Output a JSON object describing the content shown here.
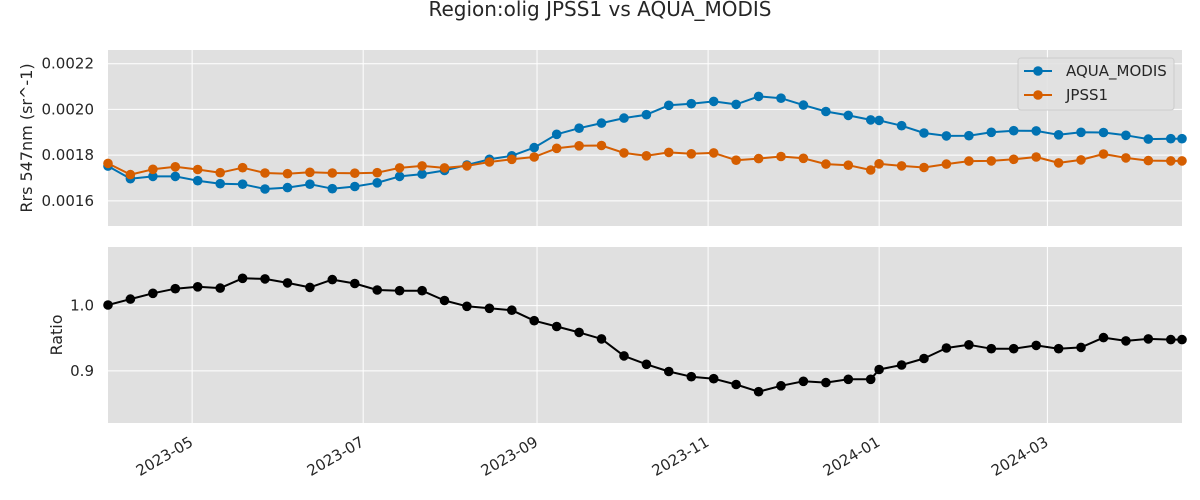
{
  "title": "Region:olig JPSS1 vs AQUA_MODIS",
  "colors": {
    "panel_background": "#e0e0e0",
    "grid": "#ffffff",
    "aqua_modis": "#0072b2",
    "jpss1": "#d55e00",
    "ratio": "#000000"
  },
  "chart_data": [
    {
      "type": "line",
      "ylabel": "Rrs 547nm (sr^-1)",
      "ylim": [
        0.00149,
        0.00226
      ],
      "yticks": [
        "0.0016",
        "0.0018",
        "0.0020",
        "0.0022"
      ],
      "xlim": [
        "2023-04-01",
        "2024-04-18"
      ],
      "grid": true,
      "legend_position": "top-right",
      "x": [
        "2023-04-01",
        "2023-04-09",
        "2023-04-17",
        "2023-04-25",
        "2023-05-03",
        "2023-05-11",
        "2023-05-19",
        "2023-05-27",
        "2023-06-04",
        "2023-06-12",
        "2023-06-20",
        "2023-06-28",
        "2023-07-06",
        "2023-07-14",
        "2023-07-22",
        "2023-07-30",
        "2023-08-07",
        "2023-08-15",
        "2023-08-23",
        "2023-08-31",
        "2023-09-08",
        "2023-09-16",
        "2023-09-24",
        "2023-10-02",
        "2023-10-10",
        "2023-10-18",
        "2023-10-26",
        "2023-11-03",
        "2023-11-11",
        "2023-11-19",
        "2023-11-27",
        "2023-12-05",
        "2023-12-13",
        "2023-12-21",
        "2023-12-29",
        "2024-01-01",
        "2024-01-09",
        "2024-01-17",
        "2024-01-25",
        "2024-02-02",
        "2024-02-10",
        "2024-02-18",
        "2024-02-26",
        "2024-03-05",
        "2024-03-13",
        "2024-03-21",
        "2024-03-29",
        "2024-04-06",
        "2024-04-14",
        "2024-04-18"
      ],
      "series": [
        {
          "name": "AQUA_MODIS",
          "color": "#0072b2",
          "values": [
            0.001752,
            0.001697,
            0.001707,
            0.001707,
            0.001688,
            0.001675,
            0.001673,
            0.001652,
            0.001658,
            0.001673,
            0.001653,
            0.001663,
            0.001679,
            0.001707,
            0.001717,
            0.001733,
            0.001757,
            0.001782,
            0.001797,
            0.001833,
            0.001891,
            0.001918,
            0.00194,
            0.001962,
            0.001977,
            0.002018,
            0.002025,
            0.002035,
            0.002022,
            0.002057,
            0.002049,
            0.002019,
            0.001991,
            0.001974,
            0.001954,
            0.001952,
            0.001929,
            0.001897,
            0.001884,
            0.001885,
            0.0019,
            0.001907,
            0.001906,
            0.001889,
            0.0019,
            0.001899,
            0.001887,
            0.00187,
            0.001872,
            0.001872
          ]
        },
        {
          "name": "JPSS1",
          "color": "#d55e00",
          "values": [
            0.001764,
            0.001715,
            0.001738,
            0.001749,
            0.001737,
            0.001723,
            0.001745,
            0.001722,
            0.001719,
            0.001725,
            0.001722,
            0.001721,
            0.001723,
            0.001744,
            0.001753,
            0.001744,
            0.001753,
            0.00177,
            0.001782,
            0.001792,
            0.00183,
            0.001841,
            0.001842,
            0.00181,
            0.001797,
            0.001812,
            0.001806,
            0.00181,
            0.001778,
            0.001785,
            0.001794,
            0.001786,
            0.001761,
            0.001756,
            0.001735,
            0.001762,
            0.001753,
            0.001746,
            0.001761,
            0.001774,
            0.001775,
            0.001782,
            0.001792,
            0.001766,
            0.001779,
            0.001805,
            0.001788,
            0.001776,
            0.001775,
            0.001775
          ]
        }
      ]
    },
    {
      "type": "line",
      "ylabel": "Ratio",
      "ylim": [
        0.82,
        1.09
      ],
      "yticks": [
        "0.9",
        "1.0"
      ],
      "xlim": [
        "2023-04-01",
        "2024-04-18"
      ],
      "xticks": [
        "2023-05",
        "2023-07",
        "2023-09",
        "2023-11",
        "2024-01",
        "2024-03"
      ],
      "grid": true,
      "x": [
        "2023-04-01",
        "2023-04-09",
        "2023-04-17",
        "2023-04-25",
        "2023-05-03",
        "2023-05-11",
        "2023-05-19",
        "2023-05-27",
        "2023-06-04",
        "2023-06-12",
        "2023-06-20",
        "2023-06-28",
        "2023-07-06",
        "2023-07-14",
        "2023-07-22",
        "2023-07-30",
        "2023-08-07",
        "2023-08-15",
        "2023-08-23",
        "2023-08-31",
        "2023-09-08",
        "2023-09-16",
        "2023-09-24",
        "2023-10-02",
        "2023-10-10",
        "2023-10-18",
        "2023-10-26",
        "2023-11-03",
        "2023-11-11",
        "2023-11-19",
        "2023-11-27",
        "2023-12-05",
        "2023-12-13",
        "2023-12-21",
        "2023-12-29",
        "2024-01-01",
        "2024-01-09",
        "2024-01-17",
        "2024-01-25",
        "2024-02-02",
        "2024-02-10",
        "2024-02-18",
        "2024-02-26",
        "2024-03-05",
        "2024-03-13",
        "2024-03-21",
        "2024-03-29",
        "2024-04-06",
        "2024-04-14",
        "2024-04-18"
      ],
      "series": [
        {
          "color": "#000000",
          "values": [
            1.001,
            1.01,
            1.019,
            1.026,
            1.029,
            1.027,
            1.042,
            1.041,
            1.035,
            1.028,
            1.04,
            1.034,
            1.024,
            1.023,
            1.023,
            1.008,
            0.999,
            0.996,
            0.993,
            0.977,
            0.968,
            0.959,
            0.949,
            0.923,
            0.91,
            0.899,
            0.891,
            0.888,
            0.879,
            0.868,
            0.877,
            0.884,
            0.882,
            0.887,
            0.887,
            0.902,
            0.909,
            0.919,
            0.935,
            0.94,
            0.934,
            0.934,
            0.939,
            0.934,
            0.936,
            0.951,
            0.946,
            0.949,
            0.948,
            0.948
          ]
        }
      ]
    }
  ]
}
